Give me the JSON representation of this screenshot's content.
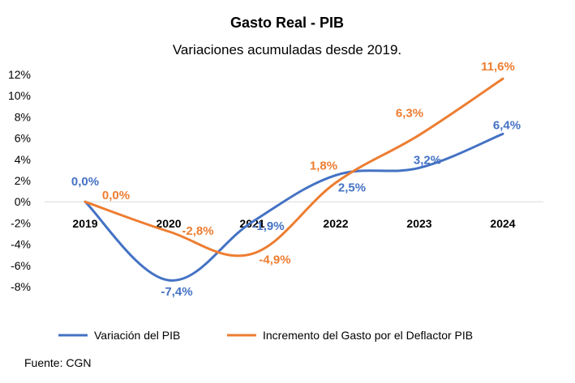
{
  "chart_data": {
    "type": "line",
    "title": "Gasto Real - PIB",
    "subtitle": "Variaciones acumuladas desde 2019.",
    "categories": [
      "2019",
      "2020",
      "2021",
      "2022",
      "2023",
      "2024"
    ],
    "ylim": [
      -8,
      12
    ],
    "yticks": [
      "12%",
      "10%",
      "8%",
      "6%",
      "4%",
      "2%",
      "0%",
      "-2%",
      "-4%",
      "-6%",
      "-8%"
    ],
    "grid": false,
    "legend_position": "bottom",
    "series": [
      {
        "name": "Variación del PIB",
        "color": "#4472C4",
        "values": [
          0.0,
          -7.4,
          -1.9,
          2.5,
          3.2,
          6.4
        ],
        "labels": [
          "0,0%",
          "-7,4%",
          "-1,9%",
          "2,5%",
          "3,2%",
          "6,4%"
        ]
      },
      {
        "name": "Incremento del Gasto por el Deflactor PIB",
        "color": "#ED7D31",
        "values": [
          0.0,
          -2.8,
          -4.9,
          1.8,
          6.3,
          11.6
        ],
        "labels": [
          "0,0%",
          "-2,8%",
          "-4,9%",
          "1,8%",
          "6,3%",
          "11,6%"
        ]
      }
    ]
  },
  "footer": {
    "source": "Fuente: CGN"
  }
}
